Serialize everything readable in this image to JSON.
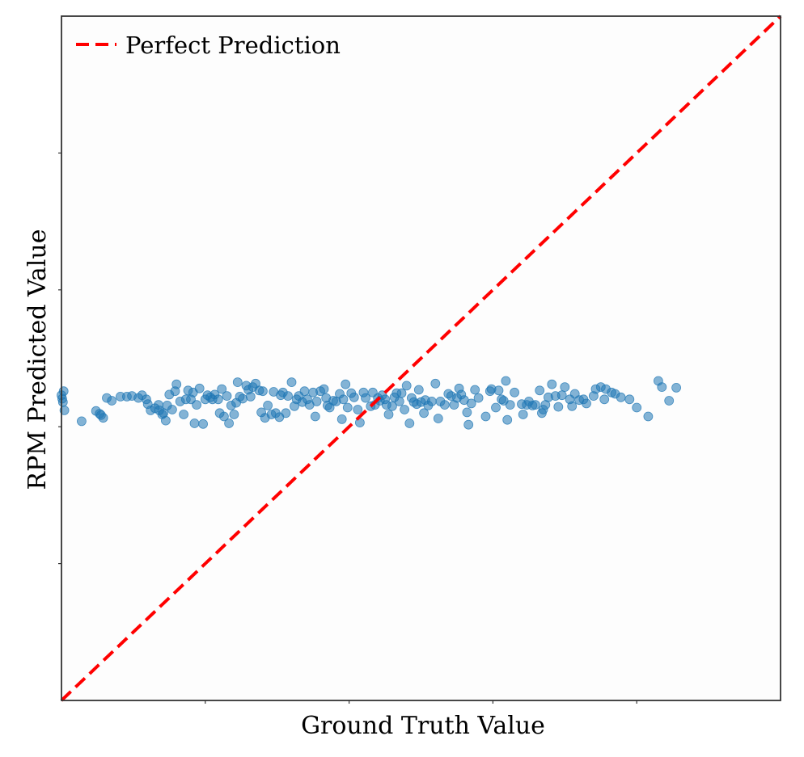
{
  "chart_data": {
    "type": "scatter",
    "xlabel": "Ground Truth Value",
    "ylabel": "RPM Predicted Value",
    "xlim": [
      0,
      1
    ],
    "ylim": [
      0,
      1
    ],
    "x_tick_labels_shown": false,
    "y_tick_labels_shown": false,
    "grid": false,
    "legend": {
      "position": "top-left",
      "entries": [
        "Perfect Prediction"
      ]
    },
    "colors": {
      "points": "#1f77b4",
      "reference_line": "#ff0000",
      "frame": "#333333"
    },
    "series": [
      {
        "name": "",
        "kind": "scatter",
        "alpha": 0.55,
        "points": [
          [
            0.0,
            0.446
          ],
          [
            0.001,
            0.441
          ],
          [
            0.002,
            0.436
          ],
          [
            0.003,
            0.452
          ],
          [
            0.004,
            0.424
          ],
          [
            0.028,
            0.408
          ],
          [
            0.048,
            0.423
          ],
          [
            0.053,
            0.419
          ],
          [
            0.055,
            0.417
          ],
          [
            0.058,
            0.413
          ],
          [
            0.063,
            0.442
          ],
          [
            0.07,
            0.438
          ],
          [
            0.082,
            0.444
          ],
          [
            0.091,
            0.444
          ],
          [
            0.098,
            0.445
          ],
          [
            0.107,
            0.442
          ],
          [
            0.112,
            0.446
          ],
          [
            0.118,
            0.44
          ],
          [
            0.12,
            0.433
          ],
          [
            0.124,
            0.424
          ],
          [
            0.13,
            0.427
          ],
          [
            0.135,
            0.432
          ],
          [
            0.136,
            0.424
          ],
          [
            0.14,
            0.418
          ],
          [
            0.142,
            0.42
          ],
          [
            0.145,
            0.409
          ],
          [
            0.147,
            0.431
          ],
          [
            0.15,
            0.447
          ],
          [
            0.154,
            0.425
          ],
          [
            0.158,
            0.452
          ],
          [
            0.16,
            0.462
          ],
          [
            0.165,
            0.437
          ],
          [
            0.17,
            0.418
          ],
          [
            0.173,
            0.44
          ],
          [
            0.176,
            0.453
          ],
          [
            0.18,
            0.44
          ],
          [
            0.183,
            0.45
          ],
          [
            0.185,
            0.405
          ],
          [
            0.188,
            0.432
          ],
          [
            0.192,
            0.456
          ],
          [
            0.197,
            0.404
          ],
          [
            0.2,
            0.44
          ],
          [
            0.203,
            0.446
          ],
          [
            0.207,
            0.443
          ],
          [
            0.21,
            0.44
          ],
          [
            0.213,
            0.447
          ],
          [
            0.218,
            0.44
          ],
          [
            0.22,
            0.42
          ],
          [
            0.223,
            0.455
          ],
          [
            0.226,
            0.415
          ],
          [
            0.23,
            0.445
          ],
          [
            0.233,
            0.405
          ],
          [
            0.236,
            0.431
          ],
          [
            0.24,
            0.418
          ],
          [
            0.243,
            0.435
          ],
          [
            0.245,
            0.465
          ],
          [
            0.248,
            0.444
          ],
          [
            0.252,
            0.441
          ],
          [
            0.257,
            0.46
          ],
          [
            0.26,
            0.454
          ],
          [
            0.263,
            0.444
          ],
          [
            0.266,
            0.458
          ],
          [
            0.27,
            0.463
          ],
          [
            0.275,
            0.453
          ],
          [
            0.278,
            0.421
          ],
          [
            0.28,
            0.452
          ],
          [
            0.283,
            0.413
          ],
          [
            0.287,
            0.431
          ],
          [
            0.292,
            0.418
          ],
          [
            0.295,
            0.451
          ],
          [
            0.298,
            0.42
          ],
          [
            0.303,
            0.414
          ],
          [
            0.305,
            0.446
          ],
          [
            0.308,
            0.45
          ],
          [
            0.312,
            0.42
          ],
          [
            0.315,
            0.445
          ],
          [
            0.32,
            0.465
          ],
          [
            0.324,
            0.43
          ],
          [
            0.327,
            0.44
          ],
          [
            0.33,
            0.445
          ],
          [
            0.335,
            0.436
          ],
          [
            0.338,
            0.452
          ],
          [
            0.342,
            0.44
          ],
          [
            0.345,
            0.432
          ],
          [
            0.35,
            0.45
          ],
          [
            0.353,
            0.415
          ],
          [
            0.355,
            0.437
          ],
          [
            0.36,
            0.452
          ],
          [
            0.365,
            0.455
          ],
          [
            0.368,
            0.442
          ],
          [
            0.37,
            0.431
          ],
          [
            0.373,
            0.428
          ],
          [
            0.378,
            0.438
          ],
          [
            0.382,
            0.437
          ],
          [
            0.387,
            0.448
          ],
          [
            0.39,
            0.411
          ],
          [
            0.392,
            0.44
          ],
          [
            0.395,
            0.462
          ],
          [
            0.398,
            0.428
          ],
          [
            0.403,
            0.449
          ],
          [
            0.407,
            0.443
          ],
          [
            0.412,
            0.425
          ],
          [
            0.415,
            0.406
          ],
          [
            0.42,
            0.45
          ],
          [
            0.423,
            0.442
          ],
          [
            0.43,
            0.43
          ],
          [
            0.433,
            0.45
          ],
          [
            0.436,
            0.432
          ],
          [
            0.44,
            0.442
          ],
          [
            0.443,
            0.438
          ],
          [
            0.446,
            0.446
          ],
          [
            0.45,
            0.44
          ],
          [
            0.452,
            0.432
          ],
          [
            0.455,
            0.418
          ],
          [
            0.46,
            0.43
          ],
          [
            0.463,
            0.443
          ],
          [
            0.466,
            0.449
          ],
          [
            0.47,
            0.437
          ],
          [
            0.473,
            0.449
          ],
          [
            0.477,
            0.425
          ],
          [
            0.48,
            0.46
          ],
          [
            0.484,
            0.405
          ],
          [
            0.487,
            0.442
          ],
          [
            0.49,
            0.436
          ],
          [
            0.494,
            0.433
          ],
          [
            0.497,
            0.454
          ],
          [
            0.5,
            0.436
          ],
          [
            0.504,
            0.42
          ],
          [
            0.506,
            0.439
          ],
          [
            0.51,
            0.431
          ],
          [
            0.515,
            0.437
          ],
          [
            0.52,
            0.463
          ],
          [
            0.524,
            0.412
          ],
          [
            0.527,
            0.437
          ],
          [
            0.533,
            0.432
          ],
          [
            0.538,
            0.448
          ],
          [
            0.542,
            0.445
          ],
          [
            0.546,
            0.432
          ],
          [
            0.55,
            0.442
          ],
          [
            0.553,
            0.456
          ],
          [
            0.556,
            0.447
          ],
          [
            0.56,
            0.439
          ],
          [
            0.564,
            0.421
          ],
          [
            0.566,
            0.403
          ],
          [
            0.57,
            0.434
          ],
          [
            0.575,
            0.454
          ],
          [
            0.58,
            0.442
          ],
          [
            0.59,
            0.415
          ],
          [
            0.596,
            0.452
          ],
          [
            0.598,
            0.455
          ],
          [
            0.604,
            0.428
          ],
          [
            0.608,
            0.453
          ],
          [
            0.612,
            0.44
          ],
          [
            0.615,
            0.438
          ],
          [
            0.618,
            0.467
          ],
          [
            0.62,
            0.41
          ],
          [
            0.624,
            0.432
          ],
          [
            0.63,
            0.45
          ],
          [
            0.64,
            0.433
          ],
          [
            0.642,
            0.418
          ],
          [
            0.647,
            0.432
          ],
          [
            0.65,
            0.437
          ],
          [
            0.655,
            0.431
          ],
          [
            0.659,
            0.432
          ],
          [
            0.665,
            0.453
          ],
          [
            0.668,
            0.42
          ],
          [
            0.67,
            0.425
          ],
          [
            0.673,
            0.432
          ],
          [
            0.677,
            0.443
          ],
          [
            0.682,
            0.462
          ],
          [
            0.687,
            0.445
          ],
          [
            0.691,
            0.429
          ],
          [
            0.696,
            0.446
          ],
          [
            0.7,
            0.458
          ],
          [
            0.707,
            0.44
          ],
          [
            0.71,
            0.43
          ],
          [
            0.714,
            0.448
          ],
          [
            0.72,
            0.439
          ],
          [
            0.726,
            0.44
          ],
          [
            0.73,
            0.434
          ],
          [
            0.74,
            0.445
          ],
          [
            0.743,
            0.455
          ],
          [
            0.75,
            0.458
          ],
          [
            0.755,
            0.44
          ],
          [
            0.757,
            0.455
          ],
          [
            0.765,
            0.45
          ],
          [
            0.77,
            0.448
          ],
          [
            0.778,
            0.443
          ],
          [
            0.79,
            0.44
          ],
          [
            0.8,
            0.428
          ],
          [
            0.816,
            0.415
          ],
          [
            0.83,
            0.467
          ],
          [
            0.835,
            0.458
          ],
          [
            0.845,
            0.438
          ],
          [
            0.855,
            0.457
          ]
        ]
      },
      {
        "name": "Perfect Prediction",
        "kind": "line",
        "style": "dashed",
        "x": [
          0,
          1
        ],
        "y": [
          0,
          1
        ]
      }
    ]
  }
}
